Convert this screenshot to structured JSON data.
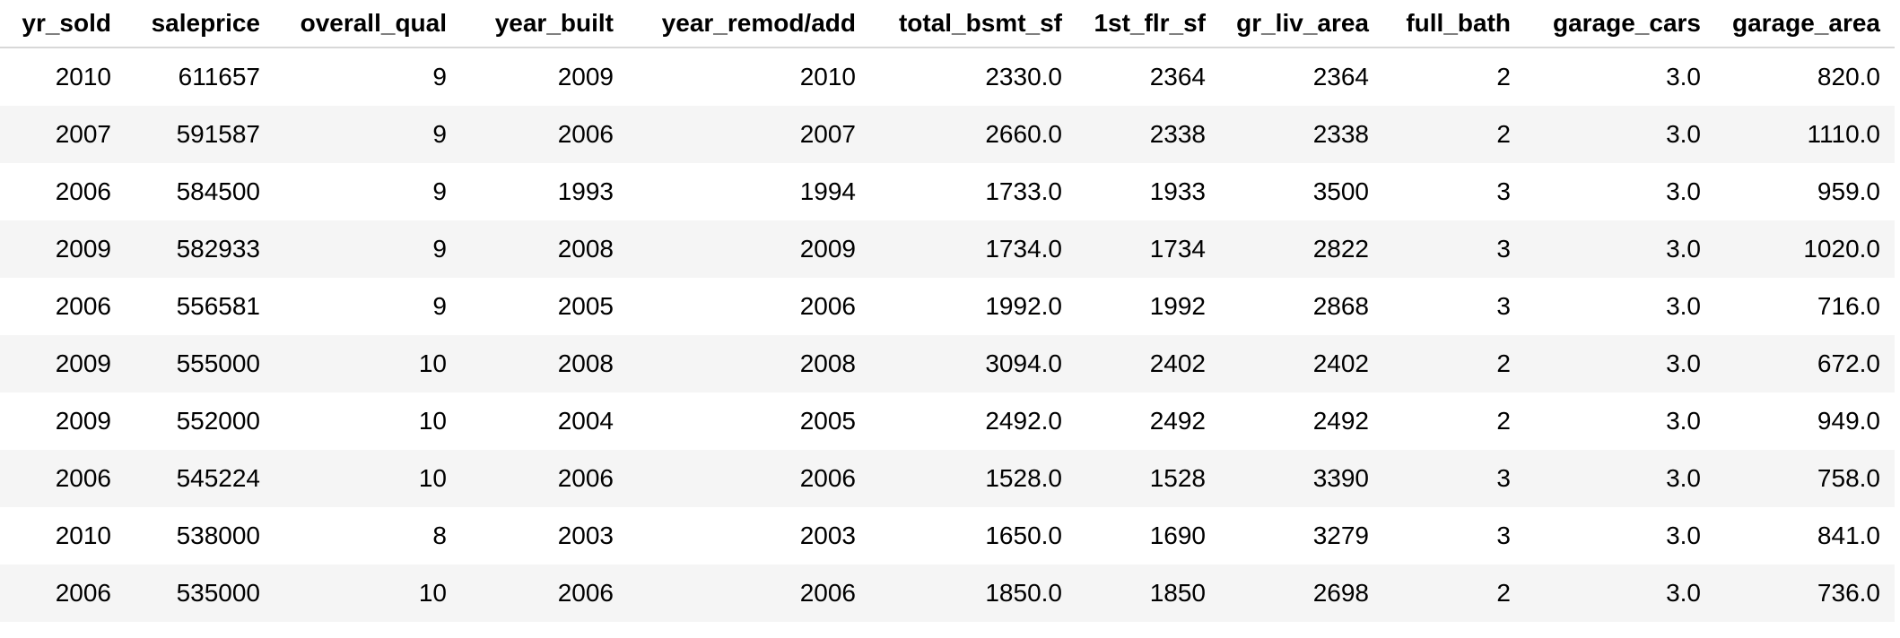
{
  "columns": [
    "yr_sold",
    "saleprice",
    "overall_qual",
    "year_built",
    "year_remod/add",
    "total_bsmt_sf",
    "1st_flr_sf",
    "gr_liv_area",
    "full_bath",
    "garage_cars",
    "garage_area"
  ],
  "rows": [
    [
      "2010",
      "611657",
      "9",
      "2009",
      "2010",
      "2330.0",
      "2364",
      "2364",
      "2",
      "3.0",
      "820.0"
    ],
    [
      "2007",
      "591587",
      "9",
      "2006",
      "2007",
      "2660.0",
      "2338",
      "2338",
      "2",
      "3.0",
      "1110.0"
    ],
    [
      "2006",
      "584500",
      "9",
      "1993",
      "1994",
      "1733.0",
      "1933",
      "3500",
      "3",
      "3.0",
      "959.0"
    ],
    [
      "2009",
      "582933",
      "9",
      "2008",
      "2009",
      "1734.0",
      "1734",
      "2822",
      "3",
      "3.0",
      "1020.0"
    ],
    [
      "2006",
      "556581",
      "9",
      "2005",
      "2006",
      "1992.0",
      "1992",
      "2868",
      "3",
      "3.0",
      "716.0"
    ],
    [
      "2009",
      "555000",
      "10",
      "2008",
      "2008",
      "3094.0",
      "2402",
      "2402",
      "2",
      "3.0",
      "672.0"
    ],
    [
      "2009",
      "552000",
      "10",
      "2004",
      "2005",
      "2492.0",
      "2492",
      "2492",
      "2",
      "3.0",
      "949.0"
    ],
    [
      "2006",
      "545224",
      "10",
      "2006",
      "2006",
      "1528.0",
      "1528",
      "3390",
      "3",
      "3.0",
      "758.0"
    ],
    [
      "2010",
      "538000",
      "8",
      "2003",
      "2003",
      "1650.0",
      "1690",
      "3279",
      "3",
      "3.0",
      "841.0"
    ],
    [
      "2006",
      "535000",
      "10",
      "2006",
      "2006",
      "1850.0",
      "1850",
      "2698",
      "2",
      "3.0",
      "736.0"
    ]
  ]
}
